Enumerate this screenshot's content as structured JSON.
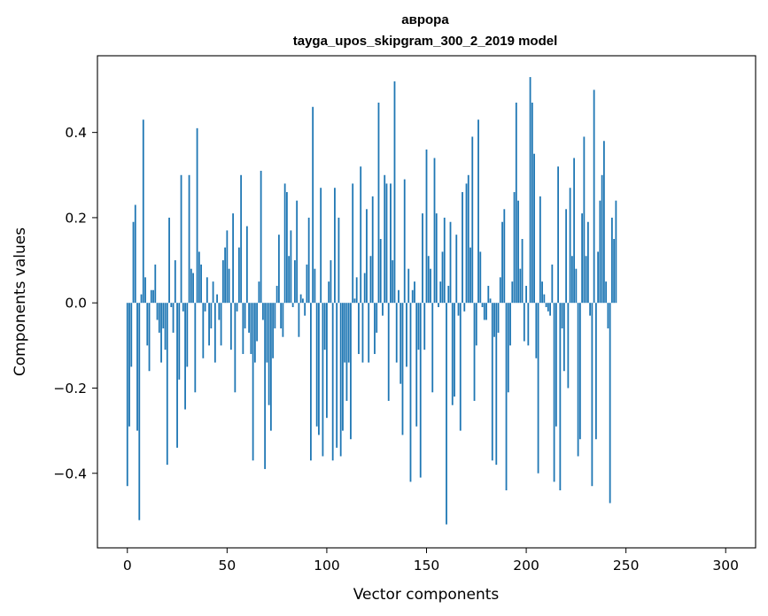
{
  "chart_data": {
    "type": "bar",
    "title": "аврора",
    "subtitle": "tayga_upos_skipgram_300_2_2019 model",
    "xlabel": "Vector components",
    "ylabel": "Components values",
    "xlim": [
      -15,
      315
    ],
    "ylim": [
      -0.575,
      0.58
    ],
    "xticks": [
      0,
      50,
      100,
      150,
      200,
      250,
      300
    ],
    "yticks": [
      -0.4,
      -0.2,
      0.0,
      0.2,
      0.4
    ],
    "ytick_labels": [
      "−0.4",
      "−0.2",
      "0.0",
      "0.2",
      "0.4"
    ],
    "bar_color": "#1f77b4",
    "grid": false,
    "values": [
      -0.43,
      -0.29,
      -0.15,
      0.19,
      0.23,
      -0.3,
      -0.51,
      0.02,
      0.43,
      0.06,
      -0.1,
      -0.16,
      0.03,
      0.03,
      0.09,
      -0.04,
      -0.07,
      -0.14,
      -0.06,
      -0.11,
      -0.38,
      0.2,
      -0.01,
      -0.07,
      0.1,
      -0.34,
      -0.18,
      0.3,
      -0.02,
      -0.25,
      -0.15,
      0.3,
      0.08,
      0.07,
      -0.21,
      0.41,
      0.12,
      0.09,
      -0.13,
      -0.02,
      0.06,
      -0.1,
      -0.06,
      0.05,
      -0.14,
      0.02,
      -0.04,
      -0.1,
      0.1,
      0.13,
      0.17,
      0.08,
      -0.11,
      0.21,
      -0.21,
      -0.02,
      0.13,
      0.3,
      -0.12,
      -0.06,
      0.18,
      -0.07,
      -0.12,
      -0.37,
      -0.14,
      -0.09,
      0.05,
      0.31,
      -0.04,
      -0.39,
      -0.14,
      -0.24,
      -0.3,
      -0.13,
      -0.06,
      0.04,
      0.16,
      -0.06,
      -0.08,
      0.28,
      0.26,
      0.11,
      0.17,
      -0.01,
      0.1,
      0.24,
      -0.08,
      0.02,
      0.01,
      -0.03,
      0.09,
      0.2,
      -0.37,
      0.46,
      0.08,
      -0.29,
      -0.31,
      0.27,
      -0.36,
      -0.11,
      -0.27,
      0.05,
      0.1,
      -0.37,
      0.27,
      -0.34,
      0.2,
      -0.36,
      -0.3,
      -0.14,
      -0.23,
      -0.14,
      -0.32,
      0.28,
      0.01,
      0.06,
      -0.12,
      0.32,
      -0.14,
      0.07,
      0.22,
      -0.14,
      0.11,
      0.25,
      -0.12,
      -0.07,
      0.47,
      0.15,
      -0.03,
      0.3,
      0.28,
      -0.23,
      0.28,
      0.1,
      0.52,
      -0.14,
      0.03,
      -0.19,
      -0.31,
      0.29,
      -0.15,
      0.08,
      -0.42,
      0.03,
      0.05,
      -0.29,
      -0.11,
      -0.41,
      0.21,
      -0.11,
      0.36,
      0.11,
      0.08,
      -0.21,
      0.34,
      0.21,
      -0.01,
      0.05,
      0.12,
      0.2,
      -0.52,
      0.04,
      0.19,
      -0.24,
      -0.22,
      0.16,
      -0.03,
      -0.3,
      0.26,
      -0.02,
      0.28,
      0.3,
      0.13,
      0.39,
      -0.23,
      -0.1,
      0.43,
      0.12,
      -0.01,
      -0.04,
      -0.04,
      0.04,
      0.01,
      -0.37,
      -0.08,
      -0.38,
      -0.07,
      0.06,
      0.19,
      0.22,
      -0.44,
      -0.21,
      -0.1,
      0.05,
      0.26,
      0.47,
      0.24,
      0.08,
      0.15,
      -0.09,
      0.04,
      -0.1,
      0.53,
      0.47,
      0.35,
      -0.13,
      -0.4,
      0.25,
      0.05,
      0.02,
      -0.01,
      -0.02,
      -0.03,
      0.09,
      -0.42,
      -0.29,
      0.32,
      -0.44,
      -0.06,
      -0.16,
      0.22,
      -0.2,
      0.27,
      0.11,
      0.34,
      0.08,
      -0.36,
      -0.32,
      0.21,
      0.39,
      0.11,
      0.19,
      -0.03,
      -0.43,
      0.5,
      -0.32,
      0.12,
      0.24,
      0.3,
      0.38,
      0.05,
      -0.06,
      -0.47,
      0.2,
      0.15,
      0.24
    ]
  }
}
